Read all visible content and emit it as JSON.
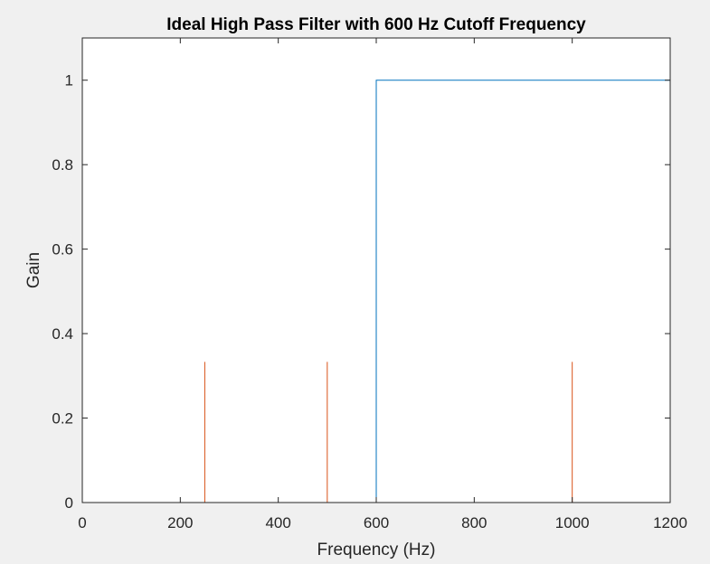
{
  "chart_data": {
    "type": "line",
    "title": "Ideal High Pass Filter with 600 Hz Cutoff Frequency",
    "xlabel": "Frequency (Hz)",
    "ylabel": "Gain",
    "xlim": [
      0,
      1200
    ],
    "ylim": [
      0,
      1.1
    ],
    "xticks": [
      0,
      200,
      400,
      600,
      800,
      1000,
      1200
    ],
    "xtick_labels": [
      "0",
      "200",
      "400",
      "600",
      "800",
      "1000",
      "1200"
    ],
    "yticks": [
      0,
      0.2,
      0.4,
      0.6,
      0.8,
      1
    ],
    "ytick_labels": [
      "0",
      "0.2",
      "0.4",
      "0.6",
      "0.8",
      "1"
    ],
    "grid": false,
    "series": [
      {
        "color": "#0072BD",
        "x": [
          0,
          600,
          600,
          1200
        ],
        "y": [
          0,
          0,
          1,
          1
        ]
      },
      {
        "color": "#D95319",
        "x": [
          0,
          250,
          250,
          250,
          500,
          500,
          500,
          1000,
          1000,
          1000,
          1200
        ],
        "y": [
          0,
          0,
          0.333,
          0,
          0,
          0.333,
          0,
          0,
          0.333,
          0,
          0
        ]
      }
    ]
  }
}
